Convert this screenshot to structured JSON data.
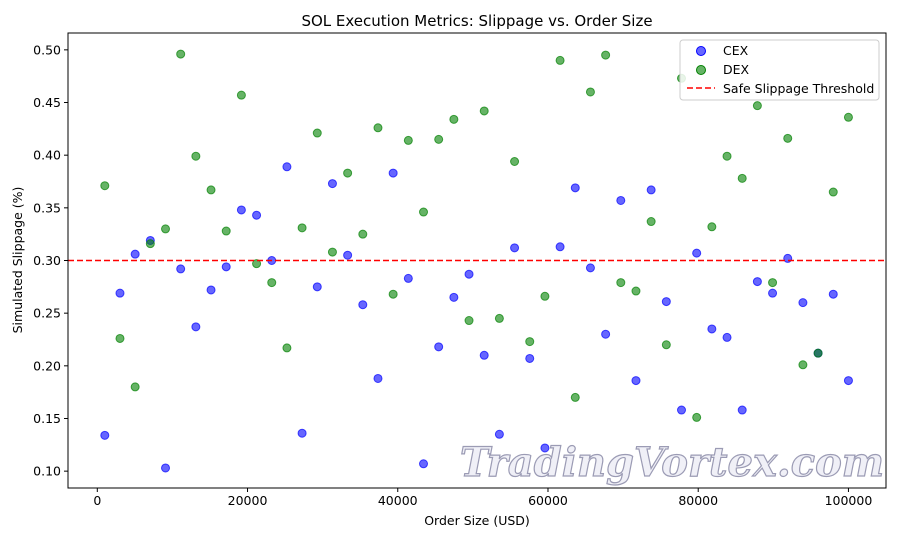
{
  "chart_data": {
    "type": "scatter",
    "title": "SOL Execution Metrics: Slippage vs. Order Size",
    "xlabel": "Order Size (USD)",
    "ylabel": "Simulated Slippage (%)",
    "xlim": [
      -3900,
      105000
    ],
    "ylim": [
      0.084,
      0.516
    ],
    "xticks": [
      0,
      20000,
      40000,
      60000,
      80000,
      100000
    ],
    "yticks": [
      0.1,
      0.15,
      0.2,
      0.25,
      0.3,
      0.35,
      0.4,
      0.45,
      0.5
    ],
    "grid": false,
    "legend_placement": "top-right",
    "x_range": [
      1000,
      100000
    ],
    "series": [
      {
        "name": "CEX",
        "color": "#0000ff",
        "values": [
          0.134,
          0.269,
          0.306,
          0.319,
          0.103,
          0.292,
          0.237,
          0.272,
          0.294,
          0.348,
          0.343,
          0.3,
          0.389,
          0.136,
          0.275,
          0.373,
          0.305,
          0.258,
          0.188,
          0.383,
          0.283,
          0.107,
          0.218,
          0.265,
          0.287,
          0.21,
          0.135,
          0.312,
          0.207,
          0.122,
          0.313,
          0.369,
          0.293,
          0.23,
          0.357,
          0.186,
          0.367,
          0.261,
          0.158,
          0.307,
          0.235,
          0.227,
          0.158,
          0.28,
          0.269,
          0.302,
          0.26,
          0.212,
          0.268,
          0.186
        ]
      },
      {
        "name": "DEX",
        "color": "#008000",
        "values": [
          0.371,
          0.226,
          0.18,
          0.316,
          0.33,
          0.496,
          0.399,
          0.367,
          0.328,
          0.457,
          0.297,
          0.279,
          0.217,
          0.331,
          0.421,
          0.308,
          0.383,
          0.325,
          0.426,
          0.268,
          0.414,
          0.346,
          0.415,
          0.434,
          0.243,
          0.442,
          0.245,
          0.394,
          0.223,
          0.266,
          0.49,
          0.17,
          0.46,
          0.495,
          0.279,
          0.271,
          0.337,
          0.22,
          0.473,
          0.151,
          0.332,
          0.399,
          0.378,
          0.447,
          0.279,
          0.416,
          0.201,
          0.212,
          0.365,
          0.436
        ]
      }
    ],
    "threshold": {
      "name": "Safe Slippage Threshold",
      "value": 0.3,
      "color": "#ff0000",
      "style": "dashed"
    }
  },
  "watermark": "TradingVortex.com"
}
